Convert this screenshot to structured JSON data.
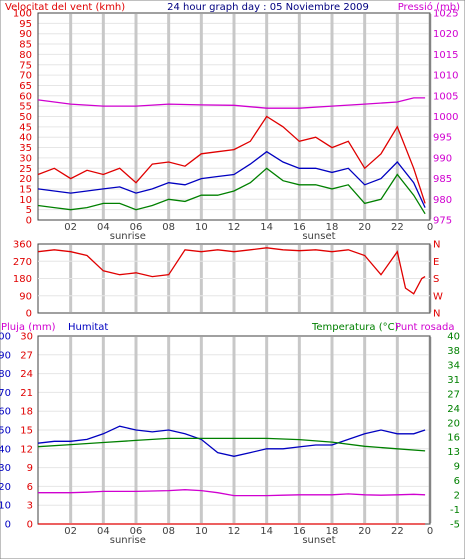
{
  "chart_data": [
    {
      "type": "line",
      "title": "24 hour graph day : 05 Noviembre 2009",
      "ylabel_left": "Velocitat del vent (kmh)",
      "ylabel_right": "Pressió (mb)",
      "x_ticks": [
        "02",
        "04",
        "06",
        "08",
        "10",
        "12",
        "14",
        "16",
        "18",
        "20",
        "22",
        "0"
      ],
      "x_annotations": [
        "sunrise",
        "sunset"
      ],
      "xlim": [
        0,
        24
      ],
      "ylim_left": [
        0,
        100
      ],
      "ylim_right": [
        975,
        1025
      ],
      "y_ticks_left": [
        "0",
        "5",
        "10",
        "15",
        "20",
        "25",
        "30",
        "35",
        "40",
        "45",
        "50",
        "55",
        "60",
        "65",
        "70",
        "75",
        "80",
        "85",
        "90",
        "95",
        "100"
      ],
      "y_ticks_right": [
        "975",
        "980",
        "985",
        "990",
        "995",
        "1000",
        "1005",
        "1010",
        "1015",
        "1020",
        "1025"
      ],
      "grid": true,
      "series": [
        {
          "axis": "left",
          "color": "#e00000",
          "x": [
            0,
            1,
            2,
            3,
            4,
            5,
            6,
            7,
            8,
            9,
            10,
            11,
            12,
            13,
            14,
            15,
            16,
            17,
            18,
            19,
            20,
            21,
            22,
            23,
            23.7
          ],
          "values": [
            22,
            25,
            20,
            24,
            22,
            25,
            18,
            27,
            28,
            26,
            32,
            33,
            34,
            38,
            50,
            45,
            38,
            40,
            35,
            38,
            25,
            32,
            45,
            25,
            8
          ]
        },
        {
          "axis": "left",
          "color": "#0000c0",
          "x": [
            0,
            1,
            2,
            3,
            4,
            5,
            6,
            7,
            8,
            9,
            10,
            11,
            12,
            13,
            14,
            15,
            16,
            17,
            18,
            19,
            20,
            21,
            22,
            23,
            23.7
          ],
          "values": [
            15,
            14,
            13,
            14,
            15,
            16,
            13,
            15,
            18,
            17,
            20,
            21,
            22,
            27,
            33,
            28,
            25,
            25,
            23,
            25,
            17,
            20,
            28,
            18,
            6
          ]
        },
        {
          "axis": "left",
          "color": "#008000",
          "x": [
            0,
            1,
            2,
            3,
            4,
            5,
            6,
            7,
            8,
            9,
            10,
            11,
            12,
            13,
            14,
            15,
            16,
            17,
            18,
            19,
            20,
            21,
            22,
            23,
            23.7
          ],
          "values": [
            7,
            6,
            5,
            6,
            8,
            8,
            5,
            7,
            10,
            9,
            12,
            12,
            14,
            18,
            25,
            19,
            17,
            17,
            15,
            17,
            8,
            10,
            22,
            12,
            3
          ]
        },
        {
          "axis": "right",
          "color": "#d000d0",
          "x": [
            0,
            2,
            4,
            6,
            8,
            10,
            12,
            14,
            16,
            18,
            20,
            22,
            23,
            23.7
          ],
          "values": [
            1004,
            1003,
            1002.5,
            1002.5,
            1003,
            1002.8,
            1002.7,
            1002,
            1002,
            1002.5,
            1003,
            1003.5,
            1004.5,
            1004.5
          ]
        }
      ]
    },
    {
      "type": "line",
      "ylabel_left": "",
      "y_ticks_left": [
        "0",
        "90",
        "180",
        "270",
        "360"
      ],
      "y_ticks_right": [
        "N",
        "W",
        "S",
        "E",
        "N"
      ],
      "ylim_left": [
        0,
        360
      ],
      "xlim": [
        0,
        24
      ],
      "x_ticks": [
        "02",
        "04",
        "06",
        "08",
        "10",
        "12",
        "14",
        "16",
        "18",
        "20",
        "22",
        "0"
      ],
      "grid": true,
      "series": [
        {
          "axis": "left",
          "color": "#e00000",
          "x": [
            0,
            1,
            2,
            3,
            4,
            5,
            6,
            7,
            8,
            9,
            10,
            11,
            12,
            13,
            14,
            15,
            16,
            17,
            18,
            19,
            20,
            21,
            22,
            22.5,
            23,
            23.5,
            23.7
          ],
          "values": [
            320,
            330,
            320,
            300,
            220,
            200,
            210,
            190,
            200,
            330,
            320,
            330,
            320,
            330,
            340,
            330,
            325,
            330,
            320,
            330,
            300,
            200,
            320,
            130,
            100,
            180,
            190
          ]
        }
      ]
    },
    {
      "type": "line",
      "ylabel_left": "Pluja (mm)",
      "ylabel_left2": "Humitat",
      "ylabel_right": "Temperatura (°C)",
      "ylabel_right2": "Punt rosada",
      "x_ticks": [
        "02",
        "04",
        "06",
        "08",
        "10",
        "12",
        "14",
        "16",
        "18",
        "20",
        "22",
        "0"
      ],
      "x_annotations": [
        "sunrise",
        "sunset"
      ],
      "xlim": [
        0,
        24
      ],
      "ylim_left": [
        0,
        100
      ],
      "ylim_right": [
        -5,
        40
      ],
      "y_ticks_left": [
        "0",
        "10",
        "20",
        "30",
        "40",
        "50",
        "60",
        "70",
        "80",
        "90",
        "100"
      ],
      "y_ticks_left2": [
        "0",
        "3",
        "6",
        "9",
        "12",
        "15",
        "18",
        "21",
        "24",
        "27",
        "30"
      ],
      "y_ticks_right": [
        "-5",
        "-1",
        "2",
        "6",
        "9",
        "13",
        "16",
        "20",
        "24",
        "27",
        "31",
        "34",
        "38",
        "40"
      ],
      "grid": true,
      "series": [
        {
          "axis": "left",
          "color": "#0000c0",
          "x": [
            0,
            1,
            2,
            3,
            4,
            5,
            6,
            7,
            8,
            9,
            10,
            11,
            12,
            13,
            14,
            15,
            16,
            17,
            18,
            19,
            20,
            21,
            22,
            23,
            23.7
          ],
          "values": [
            43,
            44,
            44,
            45,
            48,
            52,
            50,
            49,
            50,
            48,
            45,
            38,
            36,
            38,
            40,
            40,
            41,
            42,
            42,
            45,
            48,
            50,
            48,
            48,
            50
          ]
        },
        {
          "axis": "right",
          "color": "#008000",
          "x": [
            0,
            2,
            4,
            6,
            8,
            10,
            12,
            14,
            16,
            18,
            20,
            22,
            23.7
          ],
          "values": [
            13.5,
            14,
            14.5,
            15,
            15.5,
            15.5,
            15.5,
            15.5,
            15.2,
            14.6,
            13.6,
            13,
            12.5
          ]
        },
        {
          "axis": "right",
          "color": "#d000d0",
          "x": [
            0,
            1,
            2,
            3,
            4,
            5,
            6,
            7,
            8,
            9,
            10,
            11,
            12,
            13,
            14,
            15,
            16,
            17,
            18,
            19,
            20,
            21,
            22,
            23,
            23.7
          ],
          "values": [
            2.5,
            2.5,
            2.5,
            2.6,
            2.8,
            2.8,
            2.8,
            2.9,
            3,
            3.2,
            3,
            2.5,
            1.8,
            1.8,
            1.8,
            1.9,
            2,
            2,
            2,
            2.2,
            2,
            1.9,
            2,
            2.1,
            2
          ]
        },
        {
          "axis": "left",
          "color": "#e00000",
          "x": [
            0,
            23.7
          ],
          "values": [
            0,
            0
          ]
        }
      ]
    }
  ],
  "colors": {
    "frame": "#404040",
    "grid": "#c8c8c8",
    "wind": "#e00000",
    "pressure": "#d000d0",
    "humidity": "#0000c0",
    "temperature": "#008000"
  }
}
